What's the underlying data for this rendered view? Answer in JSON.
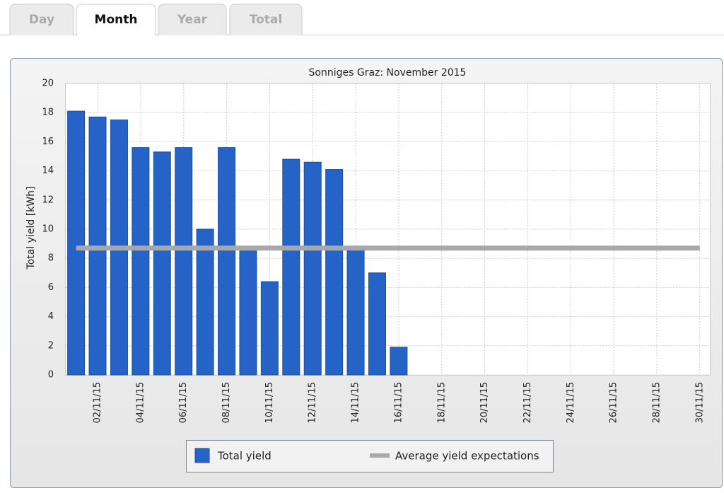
{
  "tabs": [
    "Day",
    "Month",
    "Year",
    "Total"
  ],
  "active_tab": "Month",
  "chart_data": {
    "type": "bar",
    "title": "Sonniges Graz: November 2015",
    "y_label": "Total yield [kWh]",
    "categories": [
      null,
      "02/11/15",
      null,
      "04/11/15",
      null,
      "06/11/15",
      null,
      "08/11/15",
      null,
      "10/11/15",
      null,
      "12/11/15",
      null,
      "14/11/15",
      null,
      "16/11/15",
      null,
      "18/11/15",
      null,
      "20/11/15",
      null,
      "22/11/15",
      null,
      "24/11/15",
      null,
      "26/11/15",
      null,
      "28/11/15",
      null,
      "30/11/15"
    ],
    "series": [
      {
        "name": "Total yield",
        "type": "bar",
        "color": "#2563c6",
        "values": [
          18.1,
          17.7,
          17.5,
          15.6,
          15.3,
          15.6,
          10.0,
          15.6,
          8.7,
          6.4,
          14.8,
          14.6,
          14.1,
          8.7,
          7.0,
          1.9,
          null,
          null,
          null,
          null,
          null,
          null,
          null,
          null,
          null,
          null,
          null,
          null,
          null,
          null
        ]
      },
      {
        "name": "Average yield expectations",
        "type": "line",
        "color": "#a8a8a8",
        "values": [
          8.7,
          8.7,
          8.7,
          8.7,
          8.7,
          8.7,
          8.7,
          8.7,
          8.7,
          8.7,
          8.7,
          8.7,
          8.7,
          8.7,
          8.7,
          8.7,
          8.7,
          8.7,
          8.7,
          8.7,
          8.7,
          8.7,
          8.7,
          8.7,
          8.7,
          8.7,
          8.7,
          8.7,
          8.7,
          8.7
        ]
      }
    ],
    "ylim": [
      0,
      20
    ],
    "yticks": [
      0,
      2,
      4,
      6,
      8,
      10,
      12,
      14,
      16,
      18,
      20
    ],
    "grid": true
  }
}
